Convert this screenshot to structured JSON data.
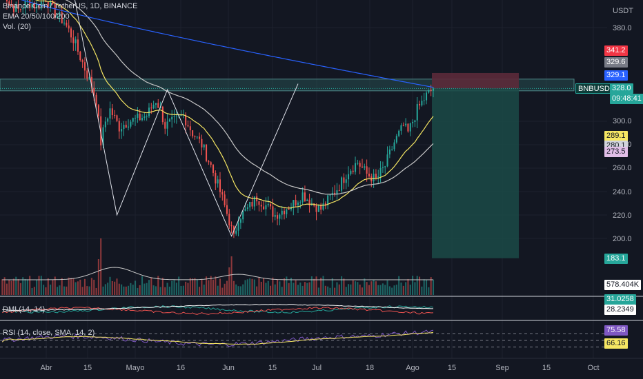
{
  "legend": {
    "symbol": "Binance Coin / TetherUS, 1D, BINANCE",
    "ema": "EMA 20/50/100/200",
    "vol": "Vol. (20)",
    "dmi": "DMI (14, 14)",
    "rsi": "RSI (14, close, SMA, 14, 2)"
  },
  "axis": {
    "currency": "USDT",
    "ticks": [
      "380.0",
      "300.0",
      "280.0",
      "260.0",
      "240.0",
      "220.0",
      "200.0"
    ]
  },
  "price_tags": {
    "t1": "341.2",
    "t2": "329.6",
    "t3": "329.1",
    "symbol": "BNBUSDT",
    "last": "328.0",
    "countdown": "09:48:41",
    "ema_a": "289.1",
    "ema_b": "280.1",
    "ema_c": "273.5",
    "stop": "183.1",
    "volume": "578.404K",
    "dmi_a": "31.0258",
    "dmi_b": "28.2349",
    "rsi_a": "75.58",
    "rsi_b": "66.16"
  },
  "x_axis": [
    "Abr",
    "15",
    "Mayo",
    "16",
    "Jun",
    "15",
    "Jul",
    "18",
    "Ago",
    "15",
    "Sep",
    "15",
    "Oct"
  ],
  "colors": {
    "background": "#131722",
    "up": "#26a69a",
    "down": "#ef5350",
    "ema20": "#f5e663",
    "ema50": "#c8c8c8",
    "ema200": "#2962ff",
    "rsi": "#7e57c2",
    "rsi_ma": "#f5e663",
    "dmi_plus": "#26a69a",
    "dmi_minus": "#ef5350",
    "adx": "#ffffff",
    "zone": "#2a5a5a",
    "stop_zone": "#5c2a3a",
    "target_zone": "#1b4a47"
  },
  "chart_data": {
    "type": "candlestick",
    "ylim": [
      180,
      400
    ],
    "close_series": [
      [
        0,
        420
      ],
      [
        4,
        400
      ],
      [
        8,
        395
      ],
      [
        12,
        402
      ],
      [
        16,
        398
      ],
      [
        20,
        405
      ],
      [
        24,
        392
      ],
      [
        28,
        385
      ],
      [
        32,
        370
      ],
      [
        36,
        350
      ],
      [
        40,
        330
      ],
      [
        42,
        318
      ],
      [
        44,
        282
      ],
      [
        46,
        300
      ],
      [
        48,
        310
      ],
      [
        52,
        295
      ],
      [
        56,
        300
      ],
      [
        60,
        302
      ],
      [
        64,
        305
      ],
      [
        68,
        318
      ],
      [
        70,
        310
      ],
      [
        72,
        296
      ],
      [
        76,
        300
      ],
      [
        80,
        305
      ],
      [
        84,
        290
      ],
      [
        88,
        280
      ],
      [
        92,
        262
      ],
      [
        96,
        240
      ],
      [
        100,
        215
      ],
      [
        102,
        200
      ],
      [
        104,
        218
      ],
      [
        108,
        225
      ],
      [
        112,
        235
      ],
      [
        116,
        228
      ],
      [
        120,
        220
      ],
      [
        124,
        225
      ],
      [
        128,
        230
      ],
      [
        132,
        238
      ],
      [
        136,
        230
      ],
      [
        140,
        225
      ],
      [
        144,
        235
      ],
      [
        148,
        245
      ],
      [
        152,
        258
      ],
      [
        156,
        265
      ],
      [
        160,
        255
      ],
      [
        164,
        250
      ],
      [
        168,
        262
      ],
      [
        172,
        282
      ],
      [
        176,
        296
      ],
      [
        178,
        290
      ],
      [
        182,
        310
      ],
      [
        186,
        322
      ],
      [
        189,
        328
      ]
    ],
    "horizontal_zone": [
      326,
      336
    ],
    "position": {
      "entry": 328.0,
      "stop": 341.2,
      "target": 183.1
    },
    "zigzag": [
      [
        30,
        430
      ],
      [
        51,
        220
      ],
      [
        73,
        327
      ],
      [
        101,
        202
      ],
      [
        130,
        332
      ]
    ],
    "rsi_guides": [
      70,
      50,
      30
    ]
  }
}
